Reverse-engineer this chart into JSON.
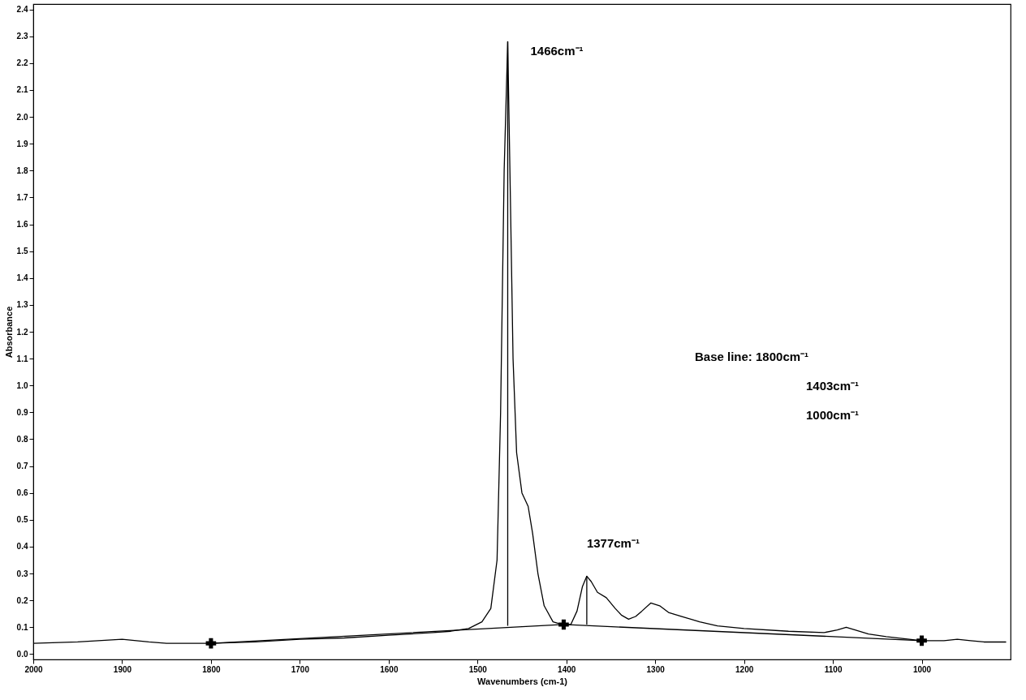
{
  "chart_data": {
    "type": "line",
    "xlabel": "Wavenumbers (cm-1)",
    "ylabel": "Absorbance",
    "xlim": [
      2000,
      900
    ],
    "xticks": [
      2000,
      1900,
      1800,
      1700,
      1600,
      1500,
      1400,
      1300,
      1200,
      1100,
      1000
    ],
    "ylim": [
      -0.02,
      2.42
    ],
    "yticks": [
      {
        "value": 0,
        "label": "0.0"
      },
      0.1,
      0.2,
      0.3,
      0.4,
      0.5,
      0.6,
      0.7,
      0.8,
      0.9,
      {
        "value": 1,
        "label": "1.0"
      },
      1.1,
      1.2,
      1.3,
      1.4,
      1.5,
      1.6,
      1.7,
      1.8,
      1.9,
      {
        "value": 2,
        "label": "2.0"
      },
      2.1,
      2.2,
      2.3,
      2.4
    ],
    "grid": false,
    "series": [
      {
        "color": "#000000",
        "marker": "none",
        "x": [
          2000,
          1950,
          1900,
          1870,
          1850,
          1800,
          1750,
          1700,
          1650,
          1600,
          1550,
          1530,
          1510,
          1495,
          1485,
          1478,
          1474,
          1470,
          1466,
          1463,
          1460,
          1456,
          1450,
          1443,
          1438,
          1432,
          1425,
          1415,
          1405,
          1395,
          1388,
          1382,
          1377,
          1372,
          1365,
          1355,
          1345,
          1338,
          1330,
          1322,
          1315,
          1305,
          1295,
          1285,
          1270,
          1250,
          1230,
          1200,
          1150,
          1110,
          1095,
          1085,
          1075,
          1060,
          1040,
          1000,
          975,
          960,
          945,
          930,
          905
        ],
        "values": [
          0.04,
          0.045,
          0.055,
          0.045,
          0.04,
          0.04,
          0.045,
          0.055,
          0.06,
          0.07,
          0.08,
          0.085,
          0.095,
          0.12,
          0.17,
          0.35,
          0.9,
          1.8,
          2.28,
          1.7,
          1.1,
          0.75,
          0.6,
          0.55,
          0.45,
          0.3,
          0.18,
          0.12,
          0.11,
          0.11,
          0.16,
          0.25,
          0.29,
          0.27,
          0.23,
          0.21,
          0.17,
          0.145,
          0.13,
          0.14,
          0.16,
          0.19,
          0.18,
          0.155,
          0.14,
          0.12,
          0.105,
          0.095,
          0.085,
          0.08,
          0.09,
          0.1,
          0.09,
          0.075,
          0.065,
          0.05,
          0.05,
          0.055,
          0.05,
          0.045,
          0.045
        ]
      },
      {
        "color": "#000000",
        "x": [
          1800,
          1403,
          1000
        ],
        "values": [
          0.04,
          0.11,
          0.05
        ]
      },
      {
        "type": "scatter",
        "color": "#000000",
        "marker": "cross",
        "x": [
          1800,
          1403,
          1000
        ],
        "values": [
          0.04,
          0.11,
          0.05
        ]
      },
      {
        "color": "#000000",
        "marker": "none",
        "x": [
          1466,
          1466
        ],
        "values": [
          0.105,
          2.28
        ]
      },
      {
        "color": "#000000",
        "marker": "none",
        "x": [
          1377,
          1377
        ],
        "values": [
          0.11,
          0.29
        ]
      }
    ],
    "annotations": [
      {
        "text": "1466cm⁻¹",
        "x": 1466,
        "y": 2.28
      },
      {
        "text": "1377cm⁻¹",
        "x": 1377,
        "y": 0.29
      },
      "Base line: 1800cm⁻¹",
      "1403cm⁻¹",
      "1000cm⁻¹"
    ]
  }
}
